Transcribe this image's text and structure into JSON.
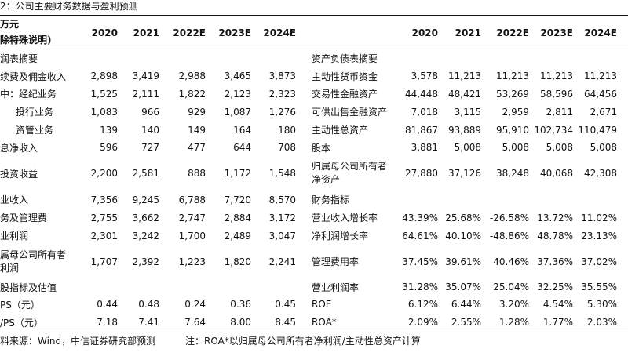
{
  "title": "2：公司主要财务数据与盈利预测",
  "unit_label": [
    "万元",
    "除特殊说明)"
  ],
  "years": [
    "2020",
    "2021",
    "2022E",
    "2023E",
    "2024E"
  ],
  "left_rows": [
    {
      "label": [
        "润表摘要"
      ],
      "values": []
    },
    {
      "label": [
        "续费及佣金收入"
      ],
      "values": [
        "2,898",
        "3,419",
        "2,988",
        "3,465",
        "3,873"
      ]
    },
    {
      "label": [
        "中：经纪业务"
      ],
      "values": [
        "1,525",
        "2,111",
        "1,822",
        "2,123",
        "2,323"
      ]
    },
    {
      "label": [
        "投行业务"
      ],
      "values": [
        "1,083",
        "966",
        "929",
        "1,087",
        "1,276"
      ],
      "indent": true
    },
    {
      "label": [
        "资管业务"
      ],
      "values": [
        "139",
        "140",
        "149",
        "164",
        "180"
      ],
      "indent": true
    },
    {
      "label": [
        "息净收入"
      ],
      "values": [
        "596",
        "727",
        "477",
        "644",
        "708"
      ]
    },
    {
      "label": [
        "投资收益"
      ],
      "values": [
        "2,200",
        "2,581",
        "888",
        "1,172",
        "1,548"
      ]
    },
    {
      "label": [
        "业收入"
      ],
      "values": [
        "7,356",
        "9,245",
        "6,788",
        "7,720",
        "8,570"
      ]
    },
    {
      "label": [
        "务及管理费"
      ],
      "values": [
        "2,755",
        "3,662",
        "2,747",
        "2,884",
        "3,172"
      ]
    },
    {
      "label": [
        "业利润"
      ],
      "values": [
        "2,301",
        "3,242",
        "1,700",
        "2,489",
        "3,047"
      ]
    },
    {
      "label": [
        "属母公司所有者",
        "利润"
      ],
      "values": [
        "1,707",
        "2,392",
        "1,223",
        "1,820",
        "2,241"
      ]
    },
    {
      "label": [
        "股指标及估值"
      ],
      "values": []
    },
    {
      "label": [
        "PS（元）"
      ],
      "values": [
        "0.44",
        "0.48",
        "0.24",
        "0.36",
        "0.45"
      ]
    },
    {
      "label": [
        "/PS（元）"
      ],
      "values": [
        "7.18",
        "7.41",
        "7.64",
        "8.00",
        "8.45"
      ]
    }
  ],
  "right_rows": [
    {
      "label": [
        "资产负债表摘要"
      ],
      "values": []
    },
    {
      "label": [
        "主动性货币资金"
      ],
      "values": [
        "3,578",
        "11,213",
        "11,213",
        "11,213",
        "11,213"
      ]
    },
    {
      "label": [
        "交易性金融资产"
      ],
      "values": [
        "44,448",
        "48,421",
        "53,269",
        "58,596",
        "64,456"
      ]
    },
    {
      "label": [
        "可供出售金融资产"
      ],
      "values": [
        "7,018",
        "3,115",
        "2,959",
        "2,811",
        "2,671"
      ]
    },
    {
      "label": [
        "主动性总资产"
      ],
      "values": [
        "81,867",
        "93,889",
        "95,910",
        "102,734",
        "110,479"
      ]
    },
    {
      "label": [
        "股本"
      ],
      "values": [
        "3,881",
        "5,008",
        "5,008",
        "5,008",
        "5,008"
      ]
    },
    {
      "label": [
        "归属母公司所有者",
        "净资产"
      ],
      "values": [
        "27,880",
        "37,126",
        "38,248",
        "40,068",
        "42,308"
      ]
    },
    {
      "label": [
        "财务指标"
      ],
      "values": []
    },
    {
      "label": [
        "营业收入增长率"
      ],
      "values": [
        "43.39%",
        "25.68%",
        "-26.58%",
        "13.72%",
        "11.02%"
      ]
    },
    {
      "label": [
        "净利润增长率"
      ],
      "values": [
        "64.61%",
        "40.10%",
        "-48.86%",
        "48.78%",
        "23.13%"
      ]
    },
    {
      "label": [
        "管理费用率"
      ],
      "values": [
        "37.45%",
        "39.61%",
        "40.46%",
        "37.36%",
        "37.02%"
      ]
    },
    {
      "label": [
        "营业利润率"
      ],
      "values": [
        "31.28%",
        "35.07%",
        "25.04%",
        "32.25%",
        "35.55%"
      ]
    },
    {
      "label": [
        "ROE"
      ],
      "values": [
        "6.12%",
        "6.44%",
        "3.20%",
        "4.54%",
        "5.30%"
      ]
    },
    {
      "label": [
        "ROA*"
      ],
      "values": [
        "2.09%",
        "2.55%",
        "1.28%",
        "1.77%",
        "2.03%"
      ]
    }
  ],
  "footer": {
    "source": "料来源：Wind，中信证券研究部预测",
    "note": "注：ROA*以归属母公司所有者净利润/主动性总资产计算"
  }
}
